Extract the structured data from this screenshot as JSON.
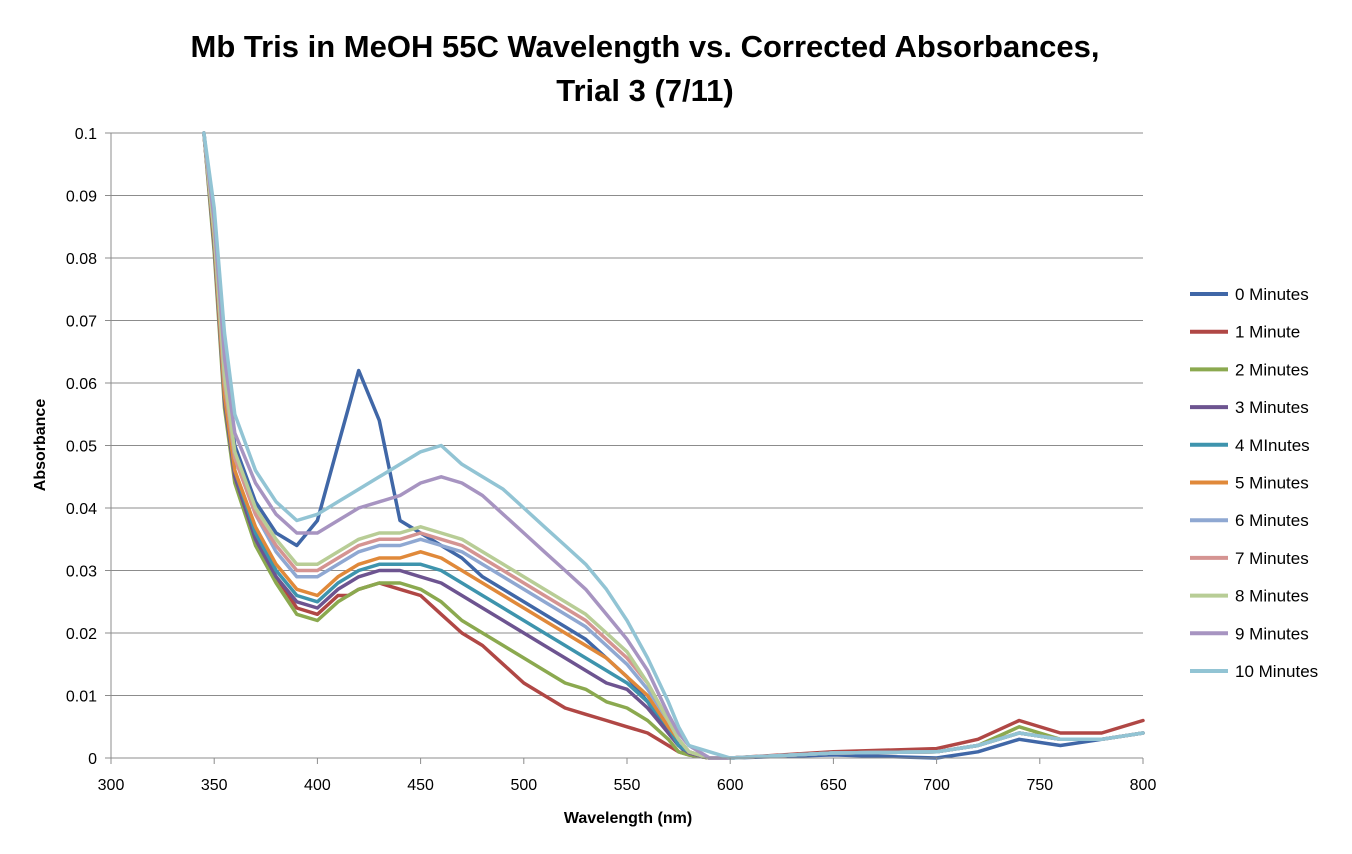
{
  "chart_data": {
    "type": "line",
    "title": [
      "Mb Tris in MeOH 55C Wavelength vs. Corrected Absorbances,",
      "Trial 3 (7/11)"
    ],
    "xlabel": "Wavelength (nm)",
    "ylabel": "Absorbance",
    "xlim": [
      300,
      800
    ],
    "ylim": [
      0,
      0.1
    ],
    "x_ticks": [
      300,
      350,
      400,
      450,
      500,
      550,
      600,
      650,
      700,
      750,
      800
    ],
    "x_tick_labels": [
      "300",
      "350",
      "400",
      "450",
      "500",
      "550",
      "600",
      "650",
      "700",
      "750",
      "800"
    ],
    "y_ticks": [
      0,
      0.01,
      0.02,
      0.03,
      0.04,
      0.05,
      0.06,
      0.07,
      0.08,
      0.09,
      0.1
    ],
    "y_tick_labels": [
      "0",
      "0.01",
      "0.02",
      "0.03",
      "0.04",
      "0.05",
      "0.06",
      "0.07",
      "0.08",
      "0.09",
      "0.1"
    ],
    "grid": "horizontal major gridlines",
    "legend_position": "right",
    "x": [
      345,
      350,
      355,
      360,
      370,
      380,
      390,
      400,
      410,
      415,
      420,
      430,
      440,
      450,
      460,
      470,
      480,
      490,
      500,
      510,
      520,
      530,
      540,
      550,
      560,
      570,
      575,
      580,
      590,
      600,
      650,
      700,
      720,
      740,
      760,
      780,
      800
    ],
    "series": [
      {
        "name": "0 Minutes",
        "color": "#4067A7",
        "values": [
          0.1,
          0.085,
          0.061,
          0.05,
          0.041,
          0.036,
          0.034,
          0.038,
          0.05,
          0.056,
          0.062,
          0.054,
          0.038,
          0.036,
          0.034,
          0.032,
          0.029,
          0.027,
          0.025,
          0.023,
          0.021,
          0.019,
          0.016,
          0.013,
          0.009,
          0.004,
          0.002,
          0.0005,
          0.0,
          0.0,
          0.0005,
          0.0,
          0.001,
          0.003,
          0.002,
          0.003,
          0.004
        ]
      },
      {
        "name": "1 Minute",
        "color": "#B04745",
        "values": [
          0.1,
          0.082,
          0.057,
          0.045,
          0.035,
          0.029,
          0.024,
          0.023,
          0.026,
          0.026,
          0.027,
          0.028,
          0.027,
          0.026,
          0.023,
          0.02,
          0.018,
          0.015,
          0.012,
          0.01,
          0.008,
          0.007,
          0.006,
          0.005,
          0.004,
          0.002,
          0.001,
          0.0005,
          0.0,
          0.0,
          0.001,
          0.0015,
          0.003,
          0.006,
          0.004,
          0.004,
          0.006
        ]
      },
      {
        "name": "2 Minutes",
        "color": "#8BA94F",
        "values": [
          0.1,
          0.081,
          0.056,
          0.044,
          0.034,
          0.028,
          0.023,
          0.022,
          0.025,
          0.026,
          0.027,
          0.028,
          0.028,
          0.027,
          0.025,
          0.022,
          0.02,
          0.018,
          0.016,
          0.014,
          0.012,
          0.011,
          0.009,
          0.008,
          0.006,
          0.003,
          0.001,
          0.0005,
          0.0,
          0.0,
          0.0008,
          0.001,
          0.002,
          0.005,
          0.003,
          0.003,
          0.004
        ]
      },
      {
        "name": "3 Minutes",
        "color": "#6D5490",
        "values": [
          0.1,
          0.082,
          0.057,
          0.045,
          0.035,
          0.029,
          0.025,
          0.024,
          0.027,
          0.028,
          0.029,
          0.03,
          0.03,
          0.029,
          0.028,
          0.026,
          0.024,
          0.022,
          0.02,
          0.018,
          0.016,
          0.014,
          0.012,
          0.011,
          0.008,
          0.004,
          0.002,
          0.0008,
          0.0,
          0.0,
          0.0008,
          0.001,
          0.002,
          0.004,
          0.003,
          0.003,
          0.004
        ]
      },
      {
        "name": "4 MInutes",
        "color": "#3E94AD",
        "values": [
          0.1,
          0.083,
          0.058,
          0.046,
          0.036,
          0.03,
          0.026,
          0.025,
          0.028,
          0.029,
          0.03,
          0.031,
          0.031,
          0.031,
          0.03,
          0.028,
          0.026,
          0.024,
          0.022,
          0.02,
          0.018,
          0.016,
          0.014,
          0.012,
          0.009,
          0.005,
          0.002,
          0.001,
          0.0,
          0.0,
          0.0008,
          0.001,
          0.002,
          0.004,
          0.003,
          0.003,
          0.004
        ]
      },
      {
        "name": "5 Minutes",
        "color": "#E0893A",
        "values": [
          0.1,
          0.083,
          0.058,
          0.046,
          0.037,
          0.031,
          0.027,
          0.026,
          0.029,
          0.03,
          0.031,
          0.032,
          0.032,
          0.033,
          0.032,
          0.03,
          0.028,
          0.026,
          0.024,
          0.022,
          0.02,
          0.018,
          0.016,
          0.013,
          0.01,
          0.005,
          0.003,
          0.001,
          0.0,
          0.0,
          0.0008,
          0.001,
          0.002,
          0.004,
          0.003,
          0.003,
          0.004
        ]
      },
      {
        "name": "6 Minutes",
        "color": "#8FA8D2",
        "values": [
          0.1,
          0.084,
          0.06,
          0.048,
          0.039,
          0.033,
          0.029,
          0.029,
          0.031,
          0.032,
          0.033,
          0.034,
          0.034,
          0.035,
          0.034,
          0.033,
          0.031,
          0.029,
          0.027,
          0.025,
          0.023,
          0.021,
          0.018,
          0.015,
          0.011,
          0.006,
          0.003,
          0.001,
          0.0,
          0.0,
          0.0008,
          0.001,
          0.002,
          0.004,
          0.003,
          0.003,
          0.004
        ]
      },
      {
        "name": "7 Minutes",
        "color": "#D59492",
        "values": [
          0.1,
          0.084,
          0.06,
          0.048,
          0.039,
          0.034,
          0.03,
          0.03,
          0.032,
          0.033,
          0.034,
          0.035,
          0.035,
          0.036,
          0.035,
          0.034,
          0.032,
          0.03,
          0.028,
          0.026,
          0.024,
          0.022,
          0.019,
          0.016,
          0.012,
          0.006,
          0.003,
          0.001,
          0.0,
          0.0,
          0.0008,
          0.001,
          0.002,
          0.004,
          0.003,
          0.003,
          0.004
        ]
      },
      {
        "name": "8 Minutes",
        "color": "#B8CD96",
        "values": [
          0.1,
          0.084,
          0.061,
          0.049,
          0.04,
          0.035,
          0.031,
          0.031,
          0.033,
          0.034,
          0.035,
          0.036,
          0.036,
          0.037,
          0.036,
          0.035,
          0.033,
          0.031,
          0.029,
          0.027,
          0.025,
          0.023,
          0.02,
          0.017,
          0.012,
          0.006,
          0.003,
          0.001,
          0.0,
          0.0,
          0.0008,
          0.001,
          0.002,
          0.004,
          0.003,
          0.003,
          0.004
        ]
      },
      {
        "name": "9 Minutes",
        "color": "#A794C1",
        "values": [
          0.1,
          0.086,
          0.064,
          0.052,
          0.044,
          0.039,
          0.036,
          0.036,
          0.038,
          0.039,
          0.04,
          0.041,
          0.042,
          0.044,
          0.045,
          0.044,
          0.042,
          0.039,
          0.036,
          0.033,
          0.03,
          0.027,
          0.023,
          0.019,
          0.014,
          0.007,
          0.004,
          0.002,
          0.0,
          0.0,
          0.0008,
          0.001,
          0.002,
          0.004,
          0.003,
          0.003,
          0.004
        ]
      },
      {
        "name": "10 Minutes",
        "color": "#92C4D4",
        "values": [
          0.1,
          0.088,
          0.068,
          0.055,
          0.046,
          0.041,
          0.038,
          0.039,
          0.041,
          0.042,
          0.043,
          0.045,
          0.047,
          0.049,
          0.05,
          0.047,
          0.045,
          0.043,
          0.04,
          0.037,
          0.034,
          0.031,
          0.027,
          0.022,
          0.016,
          0.009,
          0.005,
          0.002,
          0.001,
          0.0,
          0.0008,
          0.001,
          0.002,
          0.004,
          0.003,
          0.003,
          0.004
        ]
      }
    ]
  }
}
